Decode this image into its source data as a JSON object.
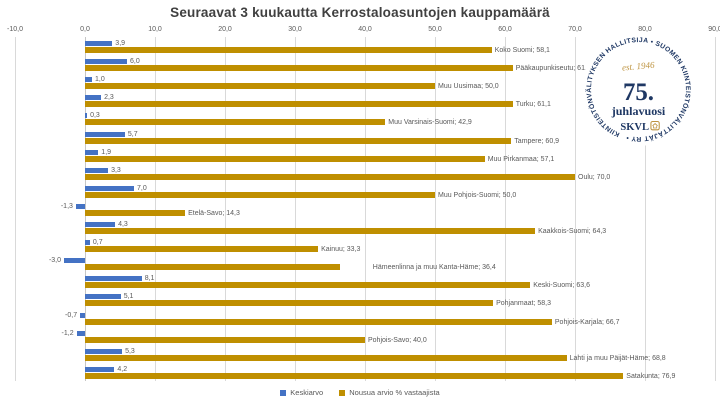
{
  "title": "Seuraavat 3 kuukautta Kerrostaloasuntojen kauppamäärä",
  "chart_data": {
    "type": "bar",
    "orientation": "horizontal",
    "title": "Seuraavat 3 kuukautta Kerrostaloasuntojen kauppamäärä",
    "xlim": [
      -10,
      90
    ],
    "x_tick_values": [
      -10,
      0,
      10,
      20,
      30,
      40,
      50,
      60,
      70,
      80,
      90
    ],
    "x_ticks": [
      "-10,0",
      "0,0",
      "10,0",
      "20,0",
      "30,0",
      "40,0",
      "50,0",
      "60,0",
      "70,0",
      "80,0",
      "90,0"
    ],
    "grid": true,
    "legend_position": "bottom",
    "categories": [
      "Koko Suomi",
      "Pääkaupunkiseutu",
      "Muu Uusimaa",
      "Turku",
      "Muu Varsinais-Suomi",
      "Tampere",
      "Muu Pirkanmaa",
      "Oulu",
      "Muu Pohjois-Suomi",
      "Etelä-Savo",
      "Kaakkois-Suomi",
      "Kainuu",
      "Hämeenlinna ja muu Kanta-Häme",
      "Keski-Suomi",
      "Pohjanmaat",
      "Pohjois-Karjala",
      "Pohjois-Savo",
      "Lahti ja muu Päijät-Häme",
      "Satakunta"
    ],
    "series": [
      {
        "name": "Keskiarvo",
        "color": "#4472C4",
        "values": [
          3.9,
          6.0,
          1.0,
          2.3,
          0.3,
          5.7,
          1.9,
          3.3,
          7.0,
          -1.3,
          4.3,
          0.7,
          -3.0,
          8.1,
          5.1,
          -0.7,
          -1.2,
          5.3,
          4.2
        ],
        "labels": [
          "3,9",
          "6,0",
          "1,0",
          "2,3",
          "0,3",
          "5,7",
          "1,9",
          "3,3",
          "7,0",
          "-1,3",
          "4,3",
          "0,7",
          "-3,0",
          "8,1",
          "5,1",
          "-0,7",
          "-1,2",
          "5,3",
          "4,2"
        ]
      },
      {
        "name": "Nousua arvio % vastaajista",
        "color": "#BF8F00",
        "values": [
          58.1,
          61.1,
          50.0,
          61.1,
          42.9,
          60.9,
          57.1,
          70.0,
          50.0,
          14.3,
          64.3,
          33.3,
          36.4,
          63.6,
          58.3,
          66.7,
          40.0,
          68.8,
          76.9
        ],
        "labels": [
          "58,1",
          "61,1",
          "50,0",
          "61,1",
          "42,9",
          "60,9",
          "57,1",
          "70,0",
          "50,0",
          "14,3",
          "64,3",
          "33,3",
          "36,4",
          "63,6",
          "58,3",
          "66,7",
          "40,0",
          "68,8",
          "76,9"
        ]
      }
    ]
  },
  "legend": {
    "items": [
      {
        "label": "Keskiarvo",
        "color": "#4472C4"
      },
      {
        "label": "Nousua arvio % vastaajista",
        "color": "#BF8F00"
      }
    ]
  },
  "badge": {
    "ring_text": "KIINTEISTÖNVÄLITYKSEN HALLITSIJA • SUOMEN KIINTEISTÖNVÄLITTÄJÄT RY •",
    "est": "est. 1946",
    "anniversary_number": "75.",
    "anniversary_word": "juhlavuosi",
    "brand": "SKVL",
    "navy": "#1F3864",
    "gold": "#BE9441"
  },
  "colors": {
    "grid": "#D9D9D9",
    "axis_zero": "#C6C6C6",
    "label_text": "#595959",
    "title_text": "#404040",
    "background": "#FFFFFF"
  }
}
